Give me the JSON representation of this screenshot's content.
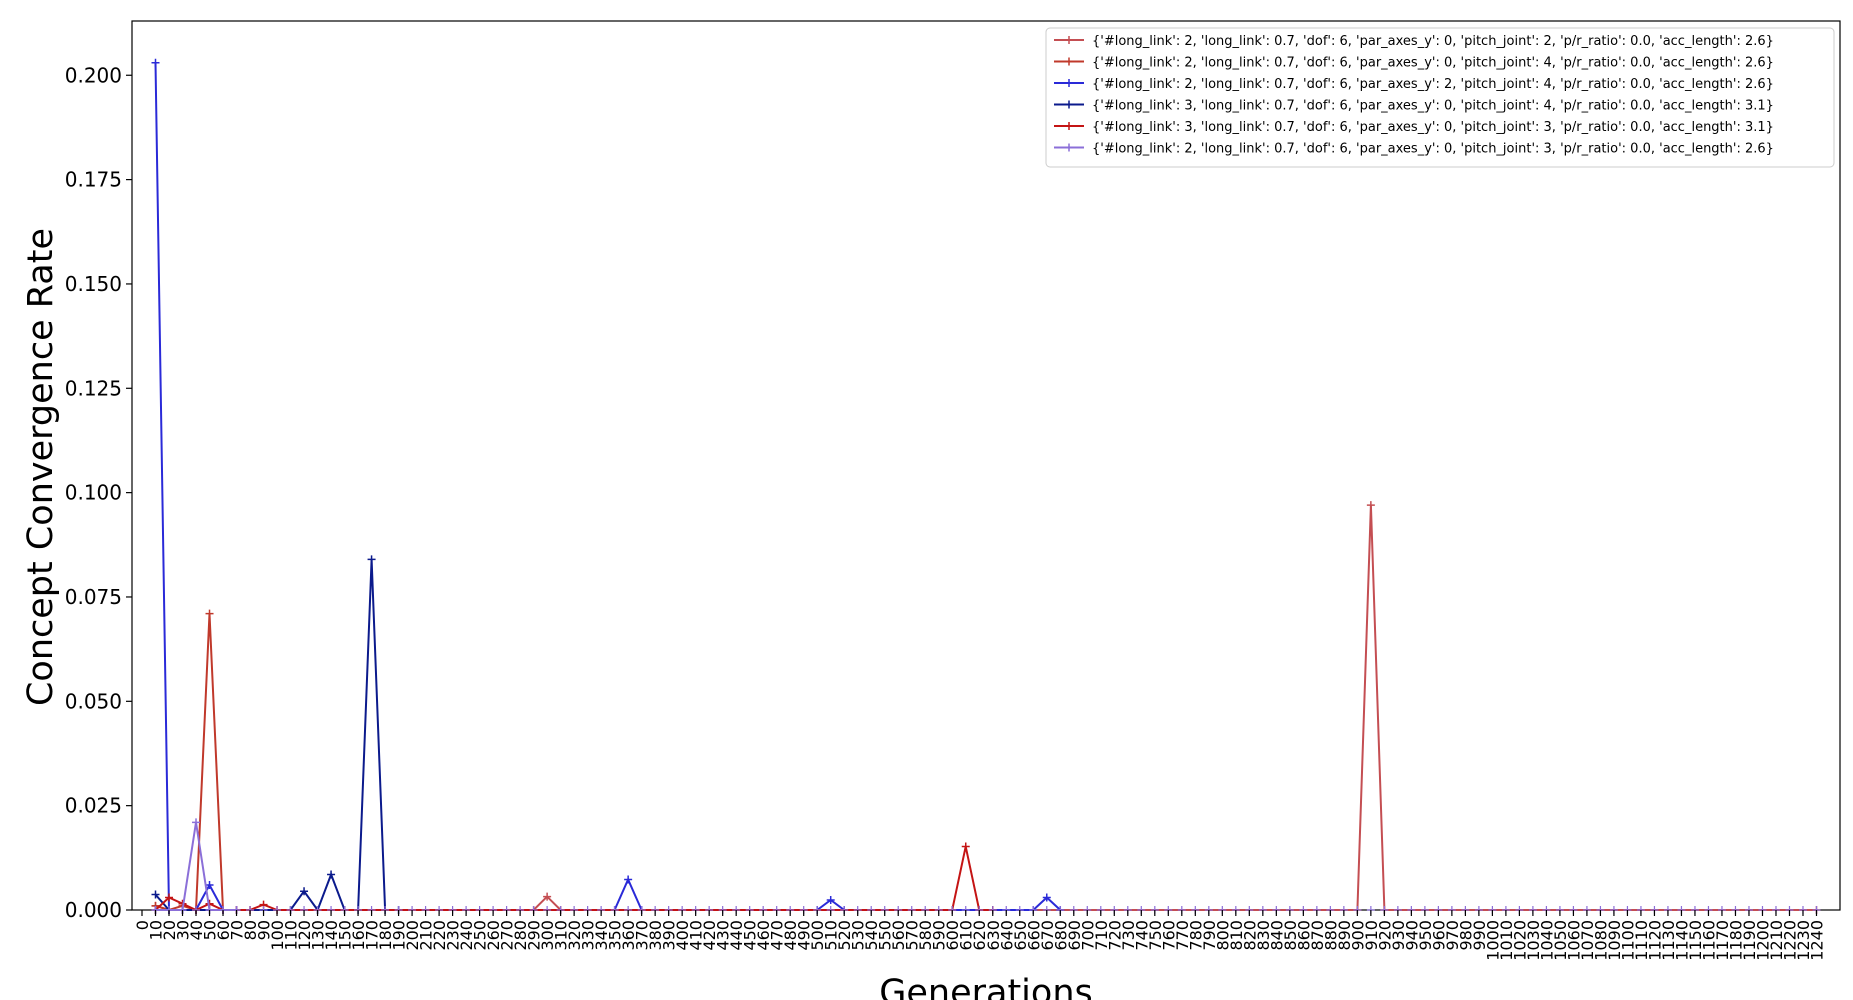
{
  "chart_data": {
    "type": "line",
    "title": "",
    "xlabel": "Generations",
    "ylabel": "Concept Convergence Rate",
    "xlim": [
      0,
      1250
    ],
    "ylim": [
      0,
      0.213
    ],
    "grid": false,
    "legend_position": "top-right",
    "x_ticks": [
      "0",
      "10",
      "20",
      "30",
      "40",
      "50",
      "60",
      "70",
      "80",
      "90",
      "100",
      "110",
      "120",
      "130",
      "140",
      "150",
      "160",
      "170",
      "180",
      "190",
      "200",
      "210",
      "220",
      "230",
      "240",
      "250",
      "260",
      "270",
      "280",
      "290",
      "300",
      "310",
      "320",
      "330",
      "340",
      "350",
      "360",
      "370",
      "380",
      "390",
      "400",
      "410",
      "420",
      "430",
      "440",
      "450",
      "460",
      "470",
      "480",
      "490",
      "500",
      "510",
      "520",
      "530",
      "540",
      "550",
      "560",
      "570",
      "580",
      "590",
      "600",
      "610",
      "620",
      "630",
      "640",
      "650",
      "660",
      "670",
      "680",
      "690",
      "700",
      "710",
      "720",
      "730",
      "740",
      "750",
      "760",
      "770",
      "780",
      "790",
      "800",
      "810",
      "820",
      "830",
      "840",
      "850",
      "860",
      "870",
      "880",
      "890",
      "900",
      "910",
      "920",
      "930",
      "940",
      "950",
      "960",
      "970",
      "980",
      "990",
      "1000",
      "1010",
      "1020",
      "1030",
      "1040",
      "1050",
      "1060",
      "1070",
      "1080",
      "1090",
      "1100",
      "1110",
      "1120",
      "1130",
      "1140",
      "1150",
      "1160",
      "1170",
      "1180",
      "1190",
      "1200",
      "1210",
      "1220",
      "1230",
      "1240"
    ],
    "y_ticks": [
      "0.000",
      "0.025",
      "0.050",
      "0.075",
      "0.100",
      "0.125",
      "0.150",
      "0.175",
      "0.200"
    ],
    "y_tick_values": [
      0,
      0.025,
      0.05,
      0.075,
      0.1,
      0.125,
      0.15,
      0.175,
      0.2
    ],
    "series": [
      {
        "name": "{'#long_link': 2, 'long_link': 0.7, 'dof': 6, 'par_axes_y': 0, 'pitch_joint': 2, 'p/r_ratio': 0.0, 'acc_length': 2.6}",
        "color": "#c44e52",
        "points": [
          [
            10,
            0.001
          ],
          [
            20,
            0.0
          ],
          [
            30,
            0.0
          ],
          [
            290,
            0.0
          ],
          [
            300,
            0.0032
          ],
          [
            310,
            0.0
          ],
          [
            900,
            0.0
          ],
          [
            910,
            0.097
          ],
          [
            920,
            0.0
          ],
          [
            1240,
            0.0
          ]
        ]
      },
      {
        "name": "{'#long_link': 2, 'long_link': 0.7, 'dof': 6, 'par_axes_y': 0, 'pitch_joint': 4, 'p/r_ratio': 0.0, 'acc_length': 2.6}",
        "color": "#c0392b",
        "points": [
          [
            10,
            0.001
          ],
          [
            20,
            0.0
          ],
          [
            30,
            0.001
          ],
          [
            40,
            0.0
          ],
          [
            50,
            0.071
          ],
          [
            60,
            0.0
          ],
          [
            70,
            0.0
          ]
        ]
      },
      {
        "name": "{'#long_link': 2, 'long_link': 0.7, 'dof': 6, 'par_axes_y': 2, 'pitch_joint': 4, 'p/r_ratio': 0.0, 'acc_length': 2.6}",
        "color": "#2a2ad8",
        "points": [
          [
            10,
            0.203
          ],
          [
            20,
            0.0
          ],
          [
            30,
            0.0
          ],
          [
            40,
            0.0
          ],
          [
            50,
            0.006
          ],
          [
            60,
            0.0
          ],
          [
            350,
            0.0
          ],
          [
            360,
            0.0073
          ],
          [
            370,
            0.0
          ],
          [
            500,
            0.0
          ],
          [
            510,
            0.0024
          ],
          [
            520,
            0.0
          ],
          [
            660,
            0.0
          ],
          [
            670,
            0.003
          ],
          [
            680,
            0.0
          ]
        ]
      },
      {
        "name": "{'#long_link': 3, 'long_link': 0.7, 'dof': 6, 'par_axes_y': 0, 'pitch_joint': 4, 'p/r_ratio': 0.0, 'acc_length': 3.1}",
        "color": "#0b1a8c",
        "points": [
          [
            10,
            0.0037
          ],
          [
            20,
            0.0
          ],
          [
            110,
            0.0
          ],
          [
            120,
            0.0045
          ],
          [
            130,
            0.0
          ],
          [
            140,
            0.0085
          ],
          [
            150,
            0.0
          ],
          [
            160,
            0.0
          ],
          [
            170,
            0.084
          ],
          [
            180,
            0.0
          ],
          [
            190,
            0.0
          ]
        ]
      },
      {
        "name": "{'#long_link': 3, 'long_link': 0.7, 'dof': 6, 'par_axes_y': 0, 'pitch_joint': 3, 'p/r_ratio': 0.0, 'acc_length': 3.1}",
        "color": "#c41414",
        "points": [
          [
            10,
            0.0
          ],
          [
            20,
            0.003
          ],
          [
            30,
            0.0015
          ],
          [
            40,
            0.0
          ],
          [
            50,
            0.0015
          ],
          [
            60,
            0.0
          ],
          [
            70,
            0.0
          ],
          [
            80,
            0.0
          ],
          [
            90,
            0.0013
          ],
          [
            100,
            0.0
          ],
          [
            600,
            0.0
          ],
          [
            610,
            0.0152
          ],
          [
            620,
            0.0
          ],
          [
            630,
            0.0
          ]
        ]
      },
      {
        "name": "{'#long_link': 2, 'long_link': 0.7, 'dof': 6, 'par_axes_y': 0, 'pitch_joint': 3, 'p/r_ratio': 0.0, 'acc_length': 2.6}",
        "color": "#8b6fd8",
        "points": [
          [
            10,
            0.0
          ],
          [
            20,
            0.0
          ],
          [
            30,
            0.0
          ],
          [
            40,
            0.021
          ],
          [
            50,
            0.0
          ],
          [
            60,
            0.0
          ],
          [
            70,
            0.0
          ]
        ]
      }
    ]
  }
}
